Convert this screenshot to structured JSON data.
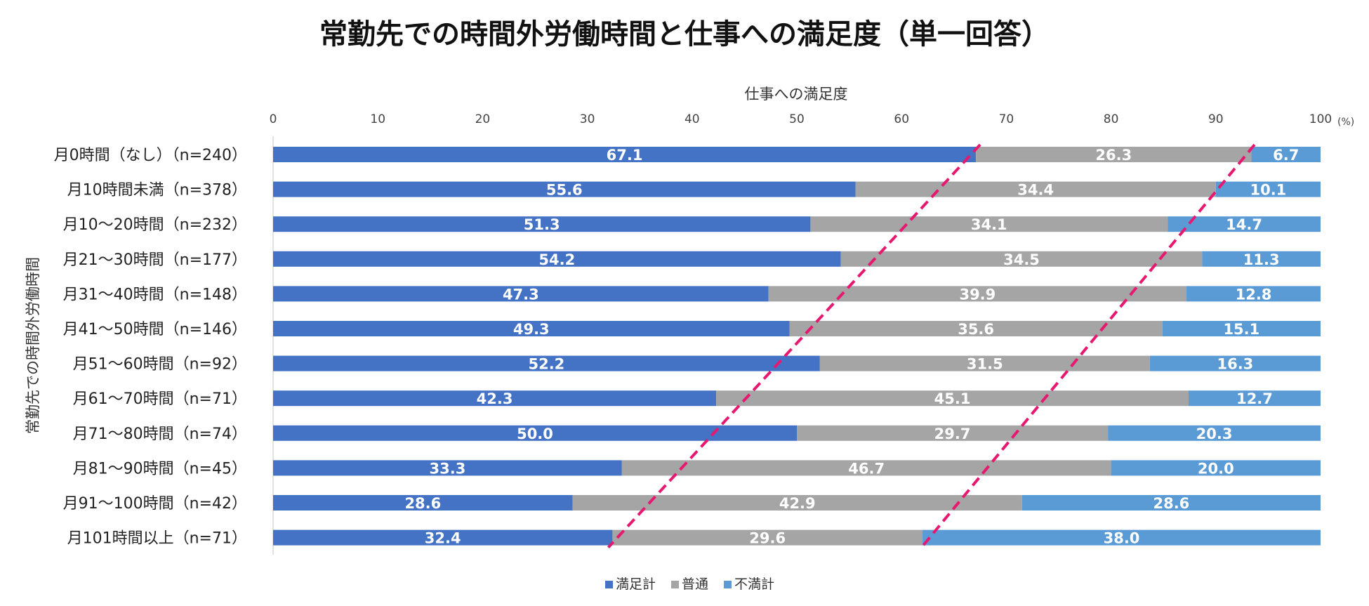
{
  "chart_data": {
    "type": "bar",
    "orientation": "horizontal-stacked-percent",
    "title": "常勤先での時間外労働時間と仕事への満足度（単一回答）",
    "xlabel": "仕事への満足度",
    "ylabel": "常勤先での時間外労働時間",
    "x_unit": "(%)",
    "xlim": [
      0,
      100
    ],
    "xticks": [
      "0",
      "10",
      "20",
      "30",
      "40",
      "50",
      "60",
      "70",
      "80",
      "90",
      "100"
    ],
    "categories": [
      "月0時間（なし）（n=240）",
      "月10時間未満（n=378）",
      "月10〜20時間（n=232）",
      "月21〜30時間（n=177）",
      "月31〜40時間（n=148）",
      "月41〜50時間（n=146）",
      "月51〜60時間（n=92）",
      "月61〜70時間（n=71）",
      "月71〜80時間（n=74）",
      "月81〜90時間（n=45）",
      "月91〜100時間（n=42）",
      "月101時間以上（n=71）"
    ],
    "series": [
      {
        "name": "満足計",
        "color": "#4472C4",
        "values": [
          67.1,
          55.6,
          51.3,
          54.2,
          47.3,
          49.3,
          52.2,
          42.3,
          50.0,
          33.3,
          28.6,
          32.4
        ],
        "labels": [
          "67.1",
          "55.6",
          "51.3",
          "54.2",
          "47.3",
          "49.3",
          "52.2",
          "42.3",
          "50.0",
          "33.3",
          "28.6",
          "32.4"
        ]
      },
      {
        "name": "普通",
        "color": "#A5A5A5",
        "values": [
          26.3,
          34.4,
          34.1,
          34.5,
          39.9,
          35.6,
          31.5,
          45.1,
          29.7,
          46.7,
          42.9,
          29.6
        ],
        "labels": [
          "26.3",
          "34.4",
          "34.1",
          "34.5",
          "39.9",
          "35.6",
          "31.5",
          "45.1",
          "29.7",
          "46.7",
          "42.9",
          "29.6"
        ]
      },
      {
        "name": "不満計",
        "color": "#5B9BD5",
        "values": [
          6.7,
          10.1,
          14.7,
          11.3,
          12.8,
          15.1,
          16.3,
          12.7,
          20.3,
          20.0,
          28.6,
          38.0
        ],
        "labels": [
          "6.7",
          "10.1",
          "14.7",
          "11.3",
          "12.8",
          "15.1",
          "16.3",
          "12.7",
          "20.3",
          "20.0",
          "28.6",
          "38.0"
        ]
      }
    ],
    "trend_lines": [
      {
        "style": "dashed",
        "color": "#E6186F",
        "from_value": 67.5,
        "to_value": 32.0
      },
      {
        "style": "dashed",
        "color": "#E6186F",
        "from_value": 93.7,
        "to_value": 61.9
      }
    ],
    "legend": {
      "position": "bottom"
    },
    "grid": false
  }
}
